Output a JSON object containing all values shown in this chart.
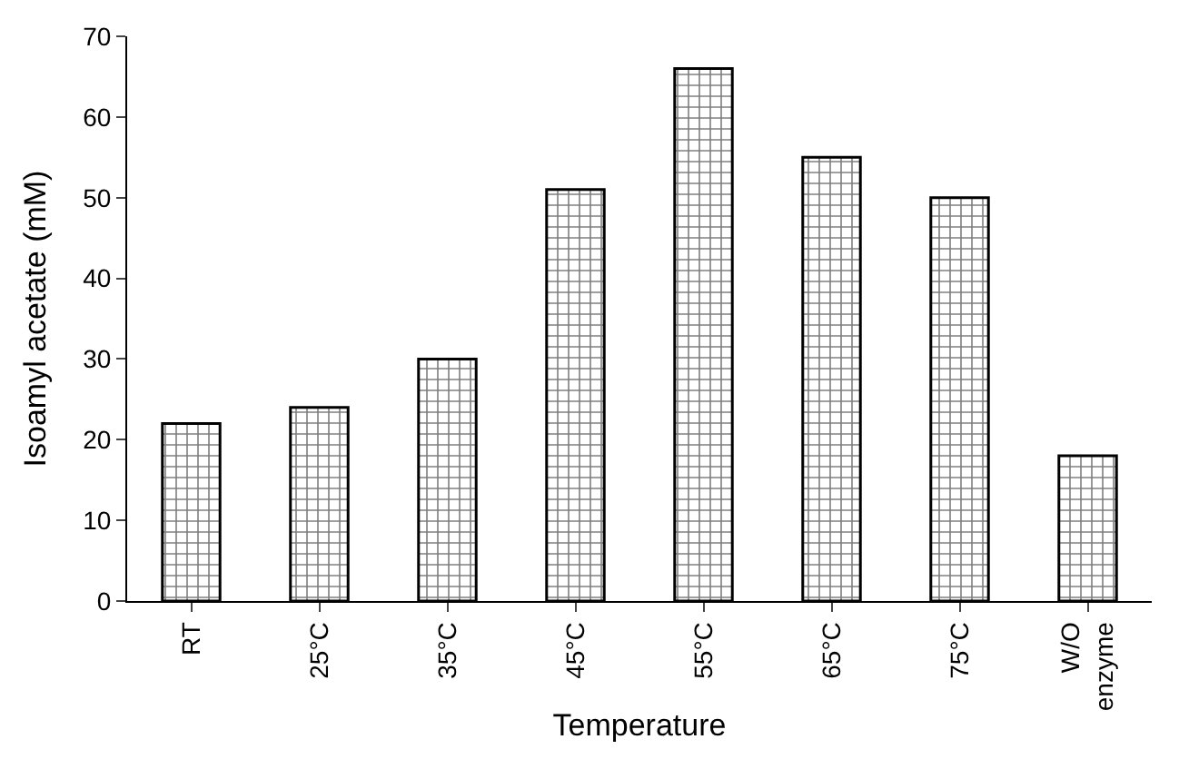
{
  "chart_data": {
    "type": "bar",
    "xlabel": "Temperature",
    "ylabel": "Isoamyl acetate (mM)",
    "categories": [
      "RT",
      "25°C",
      "35°C",
      "45°C",
      "55°C",
      "65°C",
      "75°C",
      "W/O enzyme"
    ],
    "values": [
      22,
      24,
      30,
      51,
      66,
      55,
      50,
      18
    ],
    "color": "#000000",
    "ylim": [
      0,
      70
    ],
    "yticks": [
      0,
      10,
      20,
      30,
      40,
      50,
      60,
      70
    ]
  }
}
